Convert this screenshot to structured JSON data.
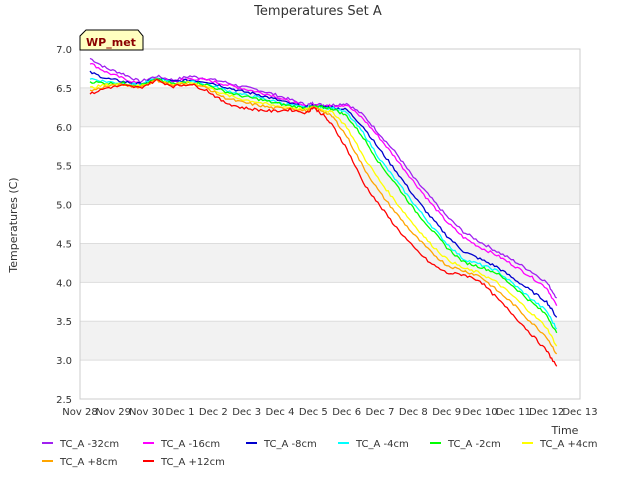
{
  "chart_data": {
    "type": "line",
    "title": "Temperatures Set A",
    "xlabel": "Time",
    "ylabel": "Temperatures (C)",
    "badge": "WP_met",
    "colors": {
      "badge_bg": "#ffffc0",
      "badge_text": "#8b0000",
      "band": "#f2f2f2",
      "grid": "#dddddd"
    },
    "ylim": [
      2.5,
      7.0
    ],
    "yticks": [
      "7.0",
      "6.5",
      "6.0",
      "5.5",
      "5.0",
      "4.5",
      "4.0",
      "3.5",
      "3.0",
      "2.5"
    ],
    "xlim": [
      0,
      15
    ],
    "xticks": [
      "Nov 28",
      "Nov 29",
      "Nov 30",
      "Dec 1",
      "Dec 2",
      "Dec 3",
      "Dec 4",
      "Dec 5",
      "Dec 6",
      "Dec 7",
      "Dec 8",
      "Dec 9",
      "Dec 10",
      "Dec 11",
      "Dec 12",
      "Dec 13"
    ],
    "x": [
      0.3,
      0.8,
      1.3,
      1.8,
      2.3,
      2.8,
      3.3,
      3.8,
      4.3,
      4.8,
      5.3,
      5.8,
      6.3,
      6.8,
      7.0,
      7.3,
      7.6,
      8.0,
      8.5,
      9.0,
      9.5,
      10.0,
      10.5,
      11.0,
      11.5,
      12.0,
      12.5,
      13.0,
      13.5,
      14.0,
      14.3
    ],
    "series": [
      {
        "name": "TC_A -32cm",
        "color": "#a020f0",
        "values": [
          6.88,
          6.75,
          6.68,
          6.58,
          6.65,
          6.6,
          6.65,
          6.62,
          6.58,
          6.52,
          6.48,
          6.42,
          6.35,
          6.28,
          6.3,
          6.28,
          6.28,
          6.3,
          6.15,
          5.9,
          5.65,
          5.35,
          5.1,
          4.85,
          4.65,
          4.52,
          4.4,
          4.28,
          4.15,
          4.0,
          3.8
        ]
      },
      {
        "name": "TC_A -16cm",
        "color": "#ff00ff",
        "values": [
          6.82,
          6.7,
          6.62,
          6.55,
          6.62,
          6.58,
          6.62,
          6.6,
          6.55,
          6.5,
          6.45,
          6.4,
          6.32,
          6.26,
          6.28,
          6.27,
          6.27,
          6.28,
          6.1,
          5.85,
          5.58,
          5.3,
          5.03,
          4.78,
          4.58,
          4.45,
          4.35,
          4.22,
          4.08,
          3.93,
          3.7
        ]
      },
      {
        "name": "TC_A -8cm",
        "color": "#0000cd",
        "values": [
          6.7,
          6.62,
          6.58,
          6.55,
          6.62,
          6.58,
          6.6,
          6.58,
          6.52,
          6.46,
          6.42,
          6.36,
          6.3,
          6.25,
          6.27,
          6.26,
          6.25,
          6.22,
          6.0,
          5.7,
          5.42,
          5.12,
          4.85,
          4.6,
          4.4,
          4.3,
          4.2,
          4.05,
          3.9,
          3.75,
          3.55
        ]
      },
      {
        "name": "TC_A -4cm",
        "color": "#00ffff",
        "values": [
          6.62,
          6.58,
          6.56,
          6.54,
          6.62,
          6.56,
          6.58,
          6.55,
          6.48,
          6.42,
          6.38,
          6.33,
          6.28,
          6.24,
          6.26,
          6.25,
          6.24,
          6.18,
          5.92,
          5.58,
          5.3,
          5.02,
          4.75,
          4.5,
          4.3,
          4.23,
          4.15,
          3.98,
          3.8,
          3.63,
          3.4
        ]
      },
      {
        "name": "TC_A -2cm",
        "color": "#00ff00",
        "values": [
          6.58,
          6.56,
          6.56,
          6.53,
          6.61,
          6.55,
          6.58,
          6.54,
          6.46,
          6.4,
          6.36,
          6.31,
          6.27,
          6.24,
          6.26,
          6.25,
          6.23,
          6.14,
          5.86,
          5.52,
          5.25,
          4.95,
          4.7,
          4.45,
          4.26,
          4.2,
          4.12,
          3.95,
          3.76,
          3.58,
          3.35
        ]
      },
      {
        "name": "TC_A +4cm",
        "color": "#ffff00",
        "values": [
          6.5,
          6.54,
          6.55,
          6.52,
          6.6,
          6.54,
          6.57,
          6.52,
          6.42,
          6.36,
          6.32,
          6.27,
          6.25,
          6.22,
          6.25,
          6.22,
          6.18,
          6.0,
          5.62,
          5.3,
          5.02,
          4.75,
          4.5,
          4.3,
          4.18,
          4.12,
          4.0,
          3.82,
          3.62,
          3.42,
          3.18
        ]
      },
      {
        "name": "TC_A +8cm",
        "color": "#ffa500",
        "values": [
          6.46,
          6.52,
          6.54,
          6.51,
          6.6,
          6.53,
          6.56,
          6.5,
          6.38,
          6.32,
          6.28,
          6.24,
          6.24,
          6.2,
          6.25,
          6.2,
          6.12,
          5.88,
          5.48,
          5.15,
          4.88,
          4.62,
          4.4,
          4.22,
          4.15,
          4.08,
          3.9,
          3.72,
          3.5,
          3.3,
          3.08
        ]
      },
      {
        "name": "TC_A +12cm",
        "color": "#ff0000",
        "values": [
          6.42,
          6.5,
          6.53,
          6.5,
          6.6,
          6.52,
          6.55,
          6.47,
          6.32,
          6.25,
          6.22,
          6.2,
          6.22,
          6.18,
          6.25,
          6.15,
          6.0,
          5.72,
          5.28,
          4.98,
          4.7,
          4.45,
          4.25,
          4.12,
          4.1,
          4.02,
          3.8,
          3.58,
          3.35,
          3.12,
          2.92
        ]
      }
    ],
    "legend_position": "bottom",
    "grid": true
  }
}
